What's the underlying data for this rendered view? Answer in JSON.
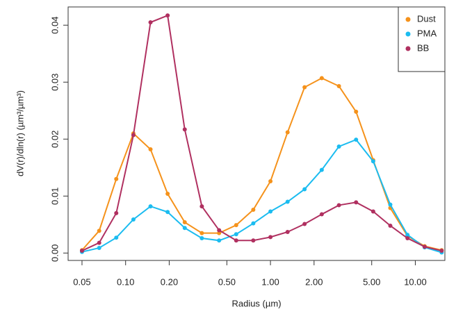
{
  "chart_data": {
    "type": "line",
    "x_label": "Radius (µm)",
    "y_label": "dV(r)/dln(r)  (µm³/µm³)",
    "x": [
      0.05,
      0.0657,
      0.0862,
      0.1132,
      0.1486,
      0.195,
      0.256,
      0.336,
      0.442,
      0.58,
      0.761,
      1.0,
      1.313,
      1.72,
      2.26,
      2.97,
      3.9,
      5.12,
      6.72,
      8.83,
      11.6,
      15.2
    ],
    "series": [
      {
        "name": "Dust",
        "color": "#f5921b",
        "values": [
          0.0005,
          0.0039,
          0.013,
          0.021,
          0.0182,
          0.0104,
          0.0054,
          0.0035,
          0.0035,
          0.0049,
          0.0076,
          0.0126,
          0.0212,
          0.0291,
          0.0307,
          0.0293,
          0.0248,
          0.0163,
          0.0079,
          0.003,
          0.0012,
          0.0005
        ]
      },
      {
        "name": "PMA",
        "color": "#1bbcf0",
        "values": [
          0.0002,
          0.0009,
          0.0027,
          0.0059,
          0.0082,
          0.0072,
          0.0044,
          0.0026,
          0.0022,
          0.0033,
          0.0052,
          0.0073,
          0.009,
          0.0112,
          0.0146,
          0.0187,
          0.0199,
          0.0161,
          0.0085,
          0.0032,
          0.001,
          0.0001
        ]
      },
      {
        "name": "BB",
        "color": "#b03060",
        "values": [
          0.0004,
          0.0018,
          0.007,
          0.0207,
          0.0405,
          0.0417,
          0.0217,
          0.0082,
          0.004,
          0.0022,
          0.0022,
          0.0028,
          0.0037,
          0.0051,
          0.0068,
          0.0084,
          0.0089,
          0.0073,
          0.0048,
          0.0026,
          0.0011,
          0.0004
        ]
      }
    ],
    "x_log": true,
    "xlim": [
      0.0401,
      16.0
    ],
    "ylim": [
      -0.0013,
      0.0432
    ],
    "xticks": [
      0.05,
      {
        "value": 0.1,
        "label": "0.10"
      },
      {
        "value": 0.2,
        "label": "0.20"
      },
      {
        "value": 0.5,
        "label": "0.50"
      },
      {
        "value": 1,
        "label": "1.00"
      },
      {
        "value": 2,
        "label": "2.00"
      },
      {
        "value": 5,
        "label": "5.00"
      },
      {
        "value": 10,
        "label": "10.00"
      }
    ],
    "yticks": [
      {
        "value": 0,
        "label": "0.00"
      },
      0.01,
      0.02,
      0.03,
      0.04
    ],
    "legend": "top-right"
  }
}
